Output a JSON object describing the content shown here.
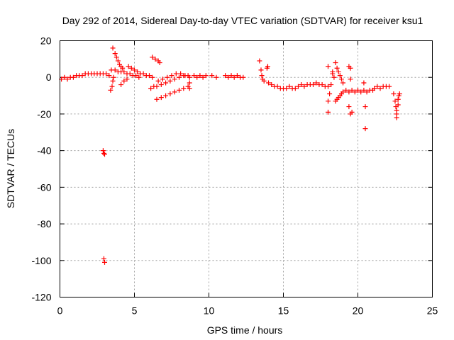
{
  "chart_data": {
    "type": "scatter",
    "title": "Day 292 of 2014, Sidereal Day-to-day VTEC variation (SDTVAR) for receiver ksu1",
    "xlabel": "GPS time / hours",
    "ylabel": "SDTVAR / TECUs",
    "xlim": [
      0,
      25
    ],
    "ylim": [
      -120,
      20
    ],
    "xticks": [
      0,
      5,
      10,
      15,
      20,
      25
    ],
    "yticks": [
      20,
      0,
      -20,
      -40,
      -60,
      -80,
      -100,
      -120
    ],
    "xtick_labels": [
      "0",
      "5",
      "10",
      "15",
      "20",
      "25"
    ],
    "ytick_labels": [
      "20",
      "0",
      "-20",
      "-40",
      "-60",
      "-80",
      "-100",
      "-120"
    ],
    "grid": true,
    "marker": "+",
    "color": "#ff0000",
    "series": [
      {
        "name": "SDTVAR",
        "points": [
          [
            0.1,
            -1
          ],
          [
            0.3,
            0
          ],
          [
            0.5,
            -1
          ],
          [
            0.7,
            0
          ],
          [
            0.9,
            0
          ],
          [
            1.1,
            1
          ],
          [
            1.3,
            1
          ],
          [
            1.5,
            1
          ],
          [
            1.7,
            2
          ],
          [
            1.9,
            2
          ],
          [
            2.1,
            2
          ],
          [
            2.3,
            2
          ],
          [
            2.5,
            2
          ],
          [
            2.7,
            2
          ],
          [
            2.9,
            2
          ],
          [
            3.1,
            2
          ],
          [
            3.3,
            1
          ],
          [
            2.9,
            -40
          ],
          [
            2.95,
            -41.5
          ],
          [
            3.0,
            -42
          ],
          [
            2.95,
            -99
          ],
          [
            3.0,
            -101
          ],
          [
            3.4,
            -7
          ],
          [
            3.5,
            -5
          ],
          [
            3.55,
            -2
          ],
          [
            3.6,
            0
          ],
          [
            3.45,
            4
          ],
          [
            3.55,
            16
          ],
          [
            3.7,
            13
          ],
          [
            3.8,
            11
          ],
          [
            3.9,
            9
          ],
          [
            4.0,
            7
          ],
          [
            4.1,
            6
          ],
          [
            4.2,
            5
          ],
          [
            3.7,
            4
          ],
          [
            3.9,
            3
          ],
          [
            4.1,
            3
          ],
          [
            4.3,
            3
          ],
          [
            4.5,
            2
          ],
          [
            4.7,
            2
          ],
          [
            4.9,
            1
          ],
          [
            5.1,
            1
          ],
          [
            5.3,
            0
          ],
          [
            4.1,
            -4
          ],
          [
            4.3,
            -2
          ],
          [
            4.5,
            -1
          ],
          [
            4.6,
            6
          ],
          [
            4.8,
            5
          ],
          [
            5.0,
            4
          ],
          [
            5.2,
            3
          ],
          [
            5.4,
            2
          ],
          [
            5.6,
            2
          ],
          [
            5.8,
            1
          ],
          [
            6.0,
            1
          ],
          [
            6.2,
            0
          ],
          [
            6.2,
            11
          ],
          [
            6.4,
            10
          ],
          [
            6.6,
            9
          ],
          [
            6.7,
            8
          ],
          [
            6.5,
            -12
          ],
          [
            6.8,
            -11
          ],
          [
            7.1,
            -10
          ],
          [
            7.4,
            -9
          ],
          [
            7.7,
            -8
          ],
          [
            8.0,
            -7
          ],
          [
            8.3,
            -6
          ],
          [
            8.6,
            -5
          ],
          [
            6.5,
            -5
          ],
          [
            6.8,
            -4
          ],
          [
            7.1,
            -3
          ],
          [
            7.4,
            -2
          ],
          [
            7.7,
            -1
          ],
          [
            8.0,
            0
          ],
          [
            8.3,
            1
          ],
          [
            8.6,
            1
          ],
          [
            6.6,
            -2
          ],
          [
            6.9,
            -1
          ],
          [
            7.2,
            0
          ],
          [
            7.5,
            1
          ],
          [
            7.8,
            2
          ],
          [
            8.1,
            2
          ],
          [
            8.4,
            1
          ],
          [
            6.1,
            -6
          ],
          [
            6.3,
            -5
          ],
          [
            8.7,
            -3
          ],
          [
            8.7,
            0
          ],
          [
            8.7,
            -6
          ],
          [
            9.0,
            1
          ],
          [
            9.2,
            0
          ],
          [
            9.4,
            1
          ],
          [
            9.6,
            0
          ],
          [
            9.8,
            1
          ],
          [
            10.2,
            1
          ],
          [
            10.5,
            0
          ],
          [
            11.1,
            1
          ],
          [
            11.3,
            0
          ],
          [
            11.5,
            1
          ],
          [
            11.7,
            0
          ],
          [
            11.9,
            1
          ],
          [
            12.1,
            0
          ],
          [
            12.3,
            0
          ],
          [
            13.4,
            9
          ],
          [
            13.5,
            4
          ],
          [
            13.55,
            1
          ],
          [
            13.6,
            -1
          ],
          [
            13.7,
            -2
          ],
          [
            13.9,
            5
          ],
          [
            13.95,
            6
          ],
          [
            14.0,
            -3
          ],
          [
            14.2,
            -4
          ],
          [
            14.4,
            -5
          ],
          [
            14.6,
            -5
          ],
          [
            14.8,
            -6
          ],
          [
            15.0,
            -6
          ],
          [
            15.2,
            -6
          ],
          [
            15.4,
            -5
          ],
          [
            15.6,
            -6
          ],
          [
            15.8,
            -6
          ],
          [
            16.0,
            -5
          ],
          [
            16.2,
            -4
          ],
          [
            16.4,
            -5
          ],
          [
            16.6,
            -4
          ],
          [
            16.8,
            -4
          ],
          [
            17.0,
            -4
          ],
          [
            17.2,
            -3
          ],
          [
            17.4,
            -4
          ],
          [
            17.6,
            -4
          ],
          [
            17.8,
            -5
          ],
          [
            18.0,
            -5
          ],
          [
            18.2,
            -4
          ],
          [
            18.0,
            6
          ],
          [
            18.0,
            -13
          ],
          [
            18.0,
            -19
          ],
          [
            18.1,
            -9
          ],
          [
            18.3,
            2
          ],
          [
            18.3,
            3
          ],
          [
            18.4,
            0
          ],
          [
            18.5,
            8
          ],
          [
            18.6,
            5
          ],
          [
            18.7,
            3
          ],
          [
            18.8,
            1
          ],
          [
            18.9,
            -1
          ],
          [
            19.0,
            -3
          ],
          [
            18.5,
            -13
          ],
          [
            18.6,
            -12
          ],
          [
            18.7,
            -11
          ],
          [
            18.8,
            -10
          ],
          [
            18.9,
            -9
          ],
          [
            19.0,
            -8
          ],
          [
            19.2,
            -7
          ],
          [
            19.4,
            -8
          ],
          [
            19.6,
            -7
          ],
          [
            19.8,
            -8
          ],
          [
            20.0,
            -7
          ],
          [
            20.2,
            -8
          ],
          [
            20.4,
            -7
          ],
          [
            20.6,
            -8
          ],
          [
            20.8,
            -7
          ],
          [
            21.0,
            -7
          ],
          [
            19.4,
            6
          ],
          [
            19.5,
            5
          ],
          [
            19.5,
            -1
          ],
          [
            19.4,
            -16
          ],
          [
            19.5,
            -20
          ],
          [
            19.6,
            -19
          ],
          [
            20.4,
            -3
          ],
          [
            20.5,
            -16
          ],
          [
            20.5,
            -28
          ],
          [
            21.1,
            -6
          ],
          [
            21.3,
            -5
          ],
          [
            21.5,
            -6
          ],
          [
            21.7,
            -5
          ],
          [
            21.9,
            -5
          ],
          [
            22.1,
            -5
          ],
          [
            22.4,
            -9
          ],
          [
            22.5,
            -13
          ],
          [
            22.55,
            -16
          ],
          [
            22.6,
            -18
          ],
          [
            22.6,
            -20
          ],
          [
            22.6,
            -22
          ],
          [
            22.7,
            -15
          ],
          [
            22.7,
            -12
          ],
          [
            22.75,
            -10
          ],
          [
            22.8,
            -9
          ]
        ]
      }
    ]
  }
}
